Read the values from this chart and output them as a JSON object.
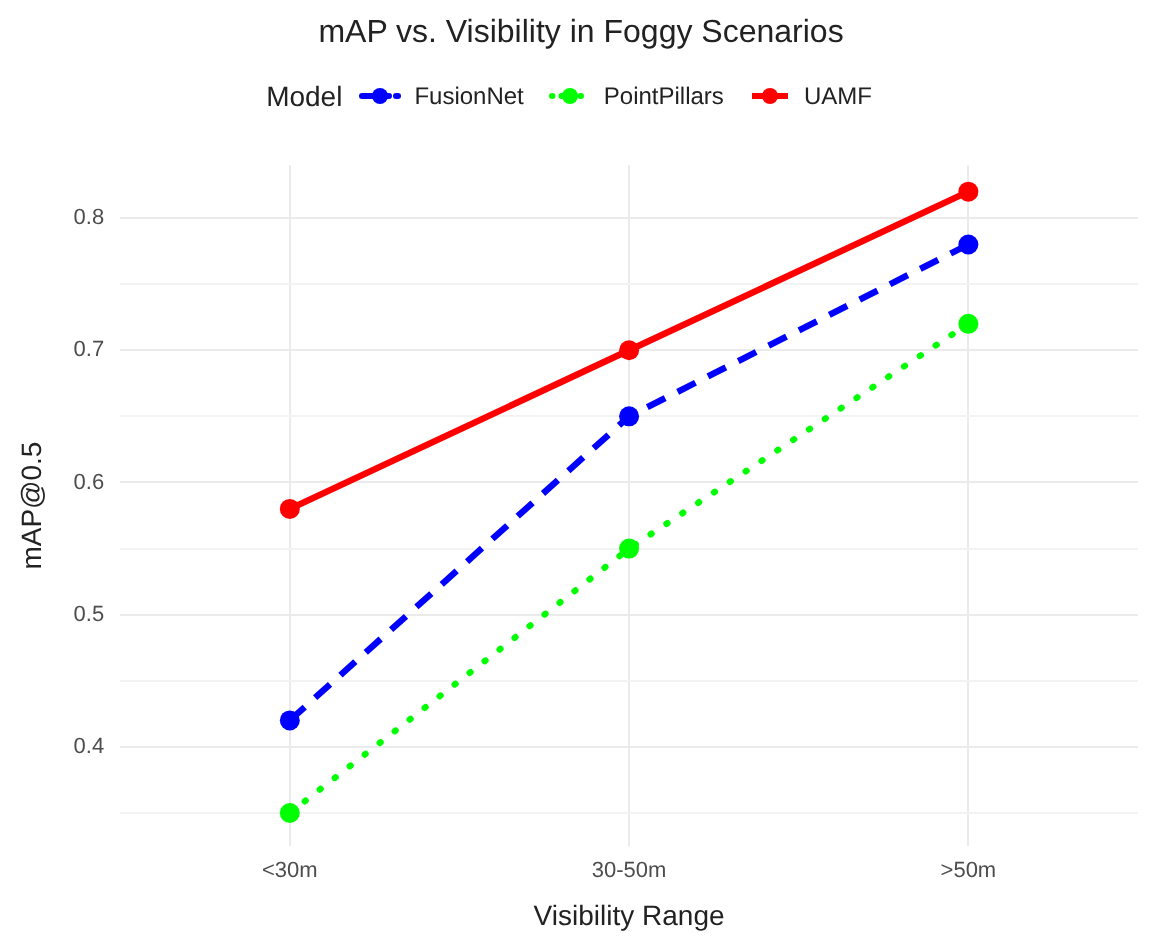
{
  "chart_data": {
    "type": "line",
    "title": "mAP vs. Visibility in Foggy Scenarios",
    "xlabel": "Visibility Range",
    "ylabel": "mAP@0.5",
    "legend_title": "Model",
    "legend": "top",
    "grid": true,
    "marker": "circle",
    "categories": [
      "<30m",
      "30-50m",
      ">50m"
    ],
    "ylim": [
      0.325,
      0.84
    ],
    "yticks": [
      {
        "value": 0.35,
        "label": null
      },
      0.4,
      {
        "value": 0.45,
        "label": null
      },
      0.5,
      {
        "value": 0.55,
        "label": null
      },
      0.6,
      {
        "value": 0.65,
        "label": null
      },
      0.7,
      {
        "value": 0.75,
        "label": null
      },
      0.8
    ],
    "series": [
      {
        "name": "FusionNet",
        "color": "#0000ff",
        "line_style": "dashed",
        "values": [
          0.42,
          0.65,
          0.78
        ]
      },
      {
        "name": "PointPillars",
        "color": "#00ff00",
        "line_style": "dotted",
        "values": [
          0.35,
          0.55,
          0.72
        ]
      },
      {
        "name": "UAMF",
        "color": "#ff0000",
        "line_style": "solid",
        "values": [
          0.58,
          0.7,
          0.82
        ]
      }
    ]
  }
}
